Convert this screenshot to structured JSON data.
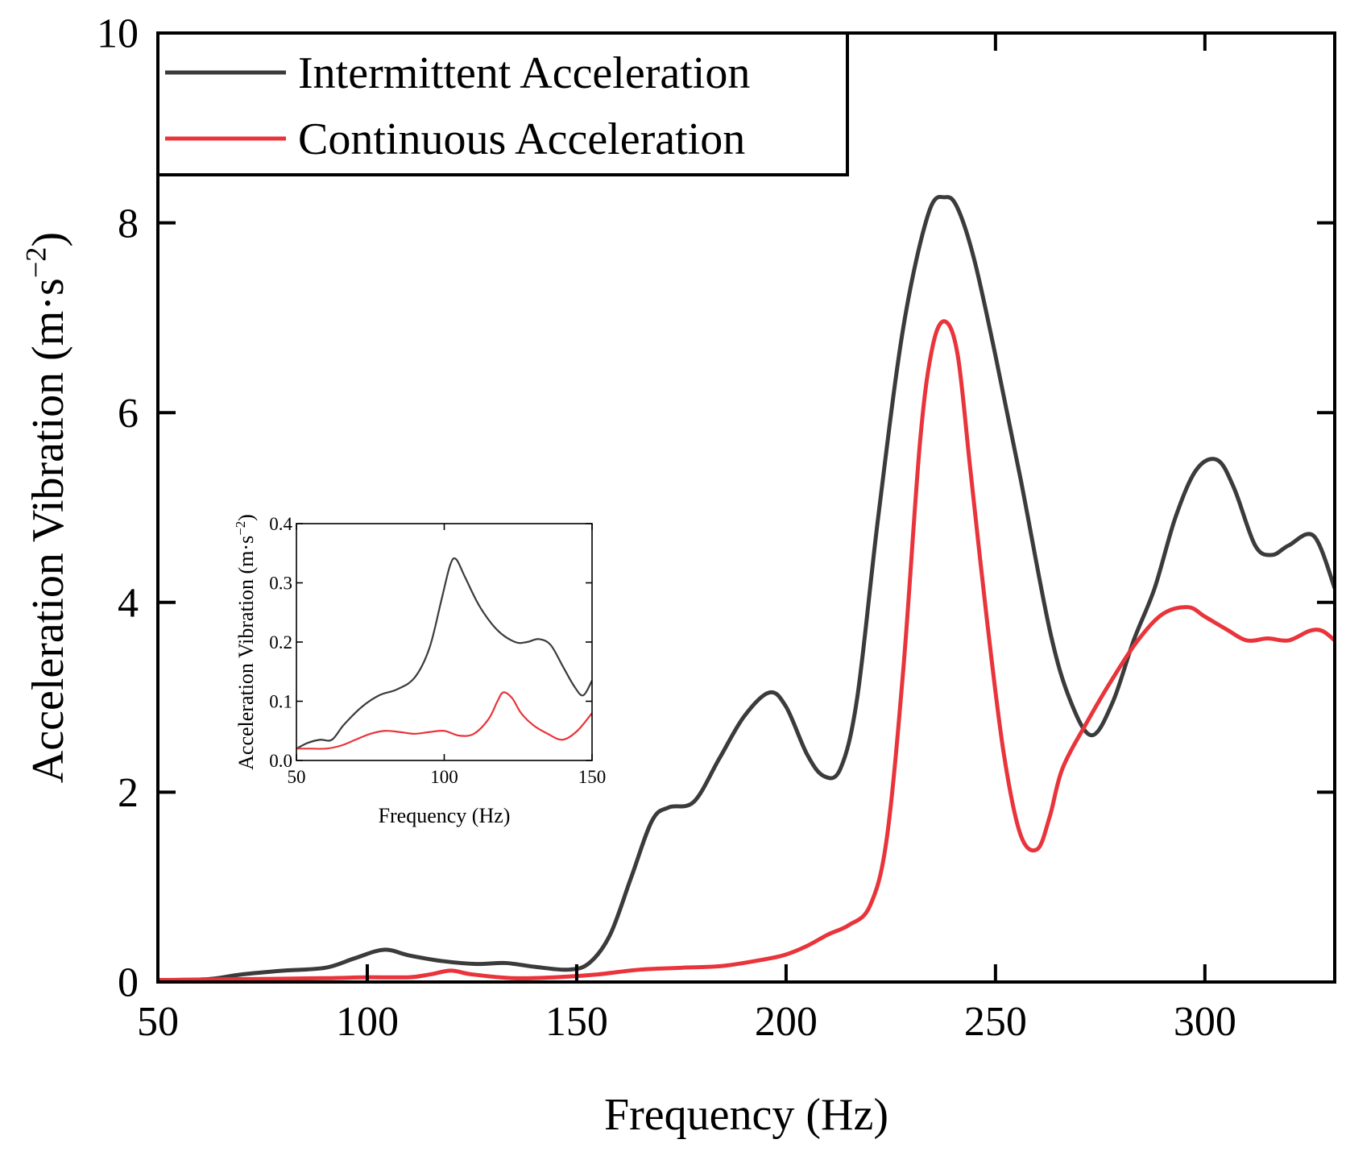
{
  "chart_data": [
    {
      "type": "line",
      "xlabel": "Frequency (Hz)",
      "ylabel": "Acceleration Vibration (m·s",
      "ylabel_superscript": "−2",
      "ylabel_close": ")",
      "xlim": [
        50,
        331
      ],
      "ylim": [
        0,
        10
      ],
      "xticks": [
        50,
        100,
        150,
        200,
        250,
        300
      ],
      "yticks": [
        0,
        2,
        4,
        6,
        8,
        10
      ],
      "xtick_labels": [
        "50",
        "100",
        "150",
        "200",
        "250",
        "300"
      ],
      "ytick_labels": [
        "0",
        "2",
        "4",
        "6",
        "8",
        "10"
      ],
      "legend_position": "top-left",
      "grid": false,
      "series": [
        {
          "name": "Intermittent Acceleration",
          "color": "#3b3b3b",
          "x": [
            50,
            62,
            70,
            80,
            90,
            97,
            104,
            110,
            118,
            126,
            133,
            140,
            148,
            153,
            158,
            163,
            168,
            172,
            178,
            184,
            190,
            196,
            200,
            205,
            209,
            213,
            217,
            222,
            228,
            234,
            238,
            241,
            245,
            250,
            256,
            263,
            268,
            273,
            278,
            283,
            288,
            293,
            298,
            303,
            307,
            312,
            316,
            320,
            326,
            331
          ],
          "y": [
            0.02,
            0.03,
            0.08,
            0.12,
            0.15,
            0.25,
            0.34,
            0.28,
            0.22,
            0.19,
            0.2,
            0.16,
            0.13,
            0.2,
            0.5,
            1.1,
            1.7,
            1.84,
            1.9,
            2.35,
            2.8,
            3.05,
            2.9,
            2.4,
            2.17,
            2.25,
            3.0,
            4.9,
            6.9,
            8.1,
            8.27,
            8.15,
            7.6,
            6.6,
            5.3,
            3.7,
            2.95,
            2.6,
            2.95,
            3.6,
            4.15,
            4.9,
            5.4,
            5.5,
            5.2,
            4.6,
            4.5,
            4.6,
            4.7,
            4.15
          ]
        },
        {
          "name": "Continuous Acceleration",
          "color": "#e8343a",
          "x": [
            50,
            70,
            90,
            100,
            110,
            115,
            120,
            125,
            135,
            145,
            155,
            165,
            175,
            185,
            195,
            200,
            205,
            210,
            215,
            220,
            224,
            228,
            232,
            235,
            238,
            241,
            244,
            248,
            252,
            256,
            260,
            263,
            266,
            272,
            278,
            284,
            290,
            296,
            300,
            305,
            310,
            315,
            320,
            325,
            328,
            331
          ],
          "y": [
            0.02,
            0.03,
            0.04,
            0.05,
            0.05,
            0.08,
            0.12,
            0.08,
            0.04,
            0.05,
            0.08,
            0.13,
            0.15,
            0.17,
            0.24,
            0.29,
            0.38,
            0.5,
            0.6,
            0.8,
            1.5,
            3.3,
            5.7,
            6.7,
            6.96,
            6.6,
            5.4,
            3.8,
            2.4,
            1.55,
            1.4,
            1.75,
            2.25,
            2.75,
            3.2,
            3.6,
            3.88,
            3.95,
            3.85,
            3.72,
            3.6,
            3.62,
            3.6,
            3.7,
            3.7,
            3.6
          ]
        }
      ]
    },
    {
      "type": "line",
      "inset": true,
      "xlabel": "Frequency (Hz)",
      "ylabel": "Acceleration Vibration (m·s",
      "ylabel_superscript": "−2",
      "ylabel_close": ")",
      "xlim": [
        50,
        150
      ],
      "ylim": [
        0,
        0.4
      ],
      "xticks": [
        50,
        100,
        150
      ],
      "yticks": [
        0,
        0.1,
        0.2,
        0.3,
        0.4
      ],
      "xtick_labels": [
        "50",
        "100",
        "150"
      ],
      "ytick_labels": [
        "0.0",
        "0.1",
        "0.2",
        "0.3",
        "0.4"
      ],
      "series": [
        {
          "name": "Intermittent Acceleration",
          "color": "#3b3b3b",
          "x": [
            50,
            54,
            58,
            62,
            66,
            72,
            78,
            84,
            90,
            95,
            99,
            102,
            104,
            107,
            112,
            118,
            124,
            128,
            132,
            136,
            140,
            144,
            147,
            150
          ],
          "y": [
            0.02,
            0.03,
            0.035,
            0.035,
            0.06,
            0.09,
            0.11,
            0.12,
            0.14,
            0.19,
            0.27,
            0.33,
            0.34,
            0.31,
            0.26,
            0.22,
            0.2,
            0.2,
            0.205,
            0.195,
            0.16,
            0.125,
            0.11,
            0.135
          ]
        },
        {
          "name": "Continuous Acceleration",
          "color": "#e8343a",
          "x": [
            50,
            55,
            60,
            65,
            70,
            75,
            80,
            85,
            90,
            95,
            100,
            105,
            110,
            115,
            118,
            120,
            123,
            126,
            130,
            135,
            140,
            145,
            150
          ],
          "y": [
            0.02,
            0.02,
            0.02,
            0.025,
            0.035,
            0.045,
            0.05,
            0.048,
            0.045,
            0.048,
            0.05,
            0.042,
            0.045,
            0.07,
            0.1,
            0.115,
            0.105,
            0.08,
            0.06,
            0.045,
            0.035,
            0.05,
            0.08
          ]
        }
      ]
    }
  ]
}
